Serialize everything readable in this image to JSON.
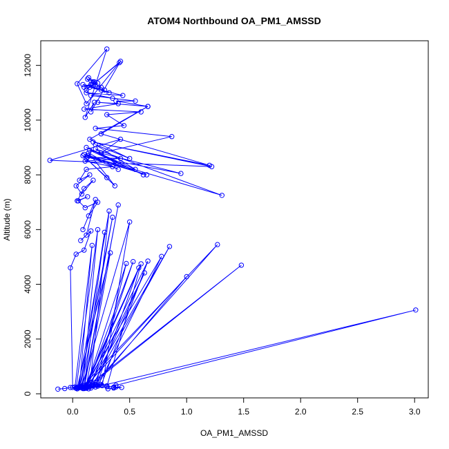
{
  "chart_data": {
    "type": "line",
    "title": "ATOM4 Northbound OA_PM1_AMSSD",
    "xlabel": "OA_PM1_AMSSD",
    "ylabel": "Altitude (m)",
    "xlim": [
      -0.28,
      3.12
    ],
    "ylim": [
      -150,
      12900
    ],
    "x_ticks": [
      0.0,
      0.5,
      1.0,
      1.5,
      2.0,
      2.5,
      3.0
    ],
    "x_tick_labels": [
      "0.0",
      "0.5",
      "1.0",
      "1.5",
      "2.0",
      "2.5",
      "3.0"
    ],
    "y_ticks": [
      0,
      2000,
      4000,
      6000,
      8000,
      10000,
      12000
    ],
    "y_tick_labels": [
      "0",
      "2000",
      "4000",
      "6000",
      "8000",
      "10000",
      "12000"
    ],
    "grid": false,
    "legend": "none",
    "marker": "open-circle",
    "series": [
      {
        "color": "#0000ff",
        "x": [
          -0.13,
          -0.07,
          -0.02,
          0.03,
          0.04,
          0.06,
          0.09,
          0.12,
          0.15,
          0.18,
          0.24,
          0.3,
          0.36,
          0.38,
          0.43,
          0.31,
          0.36,
          0.38,
          3.01,
          0.14,
          0.1,
          1.48,
          0.12,
          0.08,
          1.27,
          0.16,
          0.12,
          1.0,
          0.2,
          0.14,
          0.85,
          0.18,
          0.1,
          0.78,
          0.22,
          0.12,
          0.66,
          0.25,
          0.14,
          0.63,
          0.18,
          0.11,
          0.6,
          0.3,
          0.1,
          0.58,
          0.21,
          0.12,
          0.53,
          0.16,
          0.08,
          0.5,
          0.26,
          0.12,
          0.47,
          0.2,
          0.1,
          0.4,
          0.1,
          0.06,
          0.35,
          0.08,
          0.04,
          0.33,
          0.12,
          0.05,
          0.32,
          0.15,
          0.07,
          0.28,
          0.1,
          0.03,
          0.22,
          0.09,
          0.02,
          0.17,
          0.06,
          0.0,
          -0.02,
          0.03,
          0.1,
          0.16,
          0.07,
          0.12,
          0.2,
          0.09,
          0.14,
          0.22,
          0.11,
          0.05,
          0.13,
          0.04,
          0.1,
          0.18,
          0.08,
          0.03,
          0.15,
          0.06,
          0.12,
          0.35,
          0.11,
          0.42,
          0.13,
          0.65,
          0.1,
          0.4,
          0.14,
          0.37,
          0.12,
          0.3,
          0.09,
          0.38,
          0.2,
          1.31,
          0.13,
          0.95,
          0.15,
          0.62,
          0.12,
          0.55,
          0.2,
          0.5,
          0.15,
          0.66,
          0.25,
          1.2,
          0.18,
          1.22,
          -0.2,
          0.42,
          0.25,
          0.87,
          0.2,
          0.45,
          0.3,
          0.6,
          0.1,
          0.4,
          0.22,
          0.66,
          0.38,
          0.55,
          0.16,
          0.35,
          0.12,
          0.44,
          0.25,
          0.32,
          0.15,
          0.28,
          0.09,
          0.25,
          0.18,
          0.2,
          0.14,
          0.22,
          0.1,
          0.19,
          0.13,
          0.16,
          0.12,
          0.41,
          0.12,
          0.04,
          0.3,
          0.11,
          0.19,
          0.16,
          0.42,
          0.12
        ],
        "y": [
          170,
          190,
          230,
          200,
          180,
          220,
          190,
          210,
          260,
          300,
          350,
          290,
          240,
          250,
          230,
          180,
          210,
          310,
          3060,
          180,
          190,
          4700,
          200,
          240,
          5450,
          210,
          300,
          4280,
          330,
          260,
          5380,
          350,
          240,
          5020,
          280,
          230,
          4850,
          310,
          250,
          4420,
          290,
          220,
          4750,
          260,
          210,
          4600,
          320,
          230,
          4830,
          280,
          230,
          6280,
          300,
          260,
          4760,
          250,
          200,
          6900,
          300,
          240,
          6450,
          270,
          230,
          5150,
          290,
          220,
          6680,
          300,
          240,
          5900,
          260,
          210,
          6000,
          310,
          250,
          5420,
          280,
          230,
          4600,
          5100,
          5250,
          5950,
          5600,
          5800,
          7100,
          6000,
          6500,
          7000,
          6800,
          7050,
          7200,
          7050,
          7500,
          7800,
          7300,
          7600,
          8000,
          7800,
          8200,
          8300,
          8500,
          8600,
          8650,
          8000,
          8750,
          8200,
          8800,
          7600,
          8600,
          7900,
          8700,
          8400,
          8950,
          7250,
          8700,
          8050,
          8900,
          8000,
          9000,
          8200,
          9100,
          8600,
          9300,
          10500,
          9500,
          8350,
          9200,
          8300,
          8530,
          9300,
          8800,
          9400,
          9700,
          9800,
          10200,
          10300,
          10400,
          10600,
          10650,
          10500,
          10700,
          10700,
          10900,
          10800,
          11000,
          10900,
          11100,
          11000,
          11200,
          11100,
          11300,
          11200,
          11400,
          11250,
          11550,
          11350,
          11200,
          11400,
          11500,
          11300,
          11100,
          12100,
          10600,
          11330,
          12600,
          10100,
          10650,
          10300,
          12150,
          11100
        ]
      }
    ]
  }
}
